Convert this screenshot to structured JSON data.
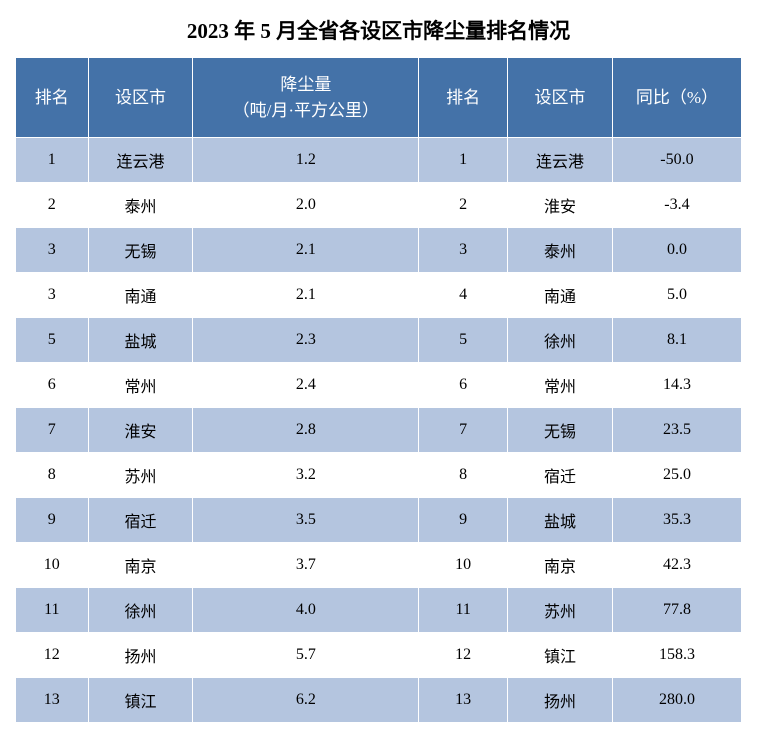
{
  "title": "2023 年 5 月全省各设区市降尘量排名情况",
  "headers": {
    "rank": "排名",
    "city": "设区市",
    "dust": "降尘量\n（吨/月·平方公里）",
    "rank2": "排名",
    "city2": "设区市",
    "yoy": "同比（%）"
  },
  "colors": {
    "header_bg": "#4472a8",
    "header_text": "#ffffff",
    "row_odd_bg": "#b4c5df",
    "row_even_bg": "#ffffff",
    "text": "#000000",
    "border": "#ffffff"
  },
  "font": {
    "title_size": 21,
    "header_size": 17,
    "cell_size": 16
  },
  "rows": [
    {
      "rank": "1",
      "city": "连云港",
      "dust": "1.2",
      "rank2": "1",
      "city2": "连云港",
      "yoy": "-50.0"
    },
    {
      "rank": "2",
      "city": "泰州",
      "dust": "2.0",
      "rank2": "2",
      "city2": "淮安",
      "yoy": "-3.4"
    },
    {
      "rank": "3",
      "city": "无锡",
      "dust": "2.1",
      "rank2": "3",
      "city2": "泰州",
      "yoy": "0.0"
    },
    {
      "rank": "3",
      "city": "南通",
      "dust": "2.1",
      "rank2": "4",
      "city2": "南通",
      "yoy": "5.0"
    },
    {
      "rank": "5",
      "city": "盐城",
      "dust": "2.3",
      "rank2": "5",
      "city2": "徐州",
      "yoy": "8.1"
    },
    {
      "rank": "6",
      "city": "常州",
      "dust": "2.4",
      "rank2": "6",
      "city2": "常州",
      "yoy": "14.3"
    },
    {
      "rank": "7",
      "city": "淮安",
      "dust": "2.8",
      "rank2": "7",
      "city2": "无锡",
      "yoy": "23.5"
    },
    {
      "rank": "8",
      "city": "苏州",
      "dust": "3.2",
      "rank2": "8",
      "city2": "宿迁",
      "yoy": "25.0"
    },
    {
      "rank": "9",
      "city": "宿迁",
      "dust": "3.5",
      "rank2": "9",
      "city2": "盐城",
      "yoy": "35.3"
    },
    {
      "rank": "10",
      "city": "南京",
      "dust": "3.7",
      "rank2": "10",
      "city2": "南京",
      "yoy": "42.3"
    },
    {
      "rank": "11",
      "city": "徐州",
      "dust": "4.0",
      "rank2": "11",
      "city2": "苏州",
      "yoy": "77.8"
    },
    {
      "rank": "12",
      "city": "扬州",
      "dust": "5.7",
      "rank2": "12",
      "city2": "镇江",
      "yoy": "158.3"
    },
    {
      "rank": "13",
      "city": "镇江",
      "dust": "6.2",
      "rank2": "13",
      "city2": "扬州",
      "yoy": "280.0"
    }
  ]
}
